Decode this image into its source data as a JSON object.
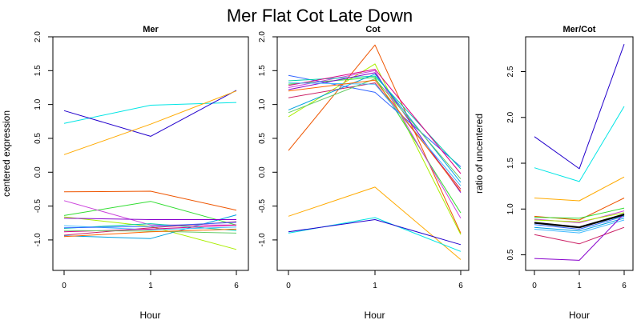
{
  "title": "Mer Flat Cot Late Down",
  "chart_data": [
    {
      "type": "line",
      "title": "Mer",
      "xlabel": "Hour",
      "ylabel": "centered expression",
      "categories": [
        "0",
        "1",
        "6"
      ],
      "ylim": [
        -1.45,
        2.0
      ],
      "yticks": [
        "-1.0",
        "-0.5",
        "0.0",
        "0.5",
        "1.0",
        "1.5",
        "2.0"
      ],
      "series": [
        {
          "color": "#00e5e5",
          "values": [
            0.72,
            0.99,
            1.03
          ]
        },
        {
          "color": "#2200cc",
          "values": [
            0.91,
            0.53,
            1.21
          ]
        },
        {
          "color": "#ffaa00",
          "values": [
            0.26,
            0.71,
            1.2
          ]
        },
        {
          "color": "#ee5500",
          "values": [
            -0.29,
            -0.28,
            -0.56
          ]
        },
        {
          "color": "#33dd33",
          "values": [
            -0.64,
            -0.43,
            -0.78
          ]
        },
        {
          "color": "#cc44dd",
          "values": [
            -0.42,
            -0.78,
            -0.78
          ]
        },
        {
          "color": "#aaee00",
          "values": [
            -0.66,
            -0.8,
            -1.14
          ]
        },
        {
          "color": "#00a0e0",
          "values": [
            -0.94,
            -0.98,
            -0.63
          ]
        },
        {
          "color": "#8800cc",
          "values": [
            -0.68,
            -0.7,
            -0.7
          ]
        },
        {
          "color": "#00ccaa",
          "values": [
            -0.83,
            -0.76,
            -0.86
          ]
        },
        {
          "color": "#cc2266",
          "values": [
            -0.93,
            -0.82,
            -0.73
          ]
        },
        {
          "color": "#44bbff",
          "values": [
            -0.79,
            -0.85,
            -0.81
          ]
        },
        {
          "color": "#dd0088",
          "values": [
            -0.88,
            -0.84,
            -0.78
          ]
        },
        {
          "color": "#66cc66",
          "values": [
            -0.86,
            -0.87,
            -0.9
          ]
        },
        {
          "color": "#ff6600",
          "values": [
            -0.95,
            -0.88,
            -0.84
          ]
        },
        {
          "color": "#3366ff",
          "values": [
            -0.82,
            -0.8,
            -0.74
          ]
        }
      ]
    },
    {
      "type": "line",
      "title": "Cot",
      "xlabel": "Hour",
      "ylabel": "",
      "categories": [
        "0",
        "1",
        "6"
      ],
      "ylim": [
        -1.45,
        2.0
      ],
      "yticks": [
        "-1.0",
        "-0.5",
        "0.0",
        "0.5",
        "1.0",
        "1.5",
        "2.0"
      ],
      "series": [
        {
          "color": "#ee5500",
          "values": [
            0.32,
            1.88,
            -0.9
          ]
        },
        {
          "color": "#ffaa00",
          "values": [
            -0.65,
            -0.22,
            -1.29
          ]
        },
        {
          "color": "#00e5e5",
          "values": [
            -0.9,
            -0.67,
            -1.17
          ]
        },
        {
          "color": "#2200cc",
          "values": [
            -0.88,
            -0.7,
            -1.07
          ]
        },
        {
          "color": "#aaee00",
          "values": [
            0.82,
            1.6,
            -0.92
          ]
        },
        {
          "color": "#33dd33",
          "values": [
            1.3,
            1.4,
            -0.6
          ]
        },
        {
          "color": "#cc44dd",
          "values": [
            1.25,
            1.5,
            -0.68
          ]
        },
        {
          "color": "#3366ff",
          "values": [
            1.43,
            1.18,
            0.08
          ]
        },
        {
          "color": "#00ccaa",
          "values": [
            1.35,
            1.42,
            0.05
          ]
        },
        {
          "color": "#cc2266",
          "values": [
            1.1,
            1.32,
            -0.25
          ]
        },
        {
          "color": "#8800cc",
          "values": [
            1.22,
            1.47,
            -0.3
          ]
        },
        {
          "color": "#00a0e0",
          "values": [
            0.92,
            1.45,
            -0.15
          ]
        },
        {
          "color": "#dd0088",
          "values": [
            1.28,
            1.52,
            -0.02
          ]
        },
        {
          "color": "#66cc66",
          "values": [
            0.88,
            1.38,
            -0.1
          ]
        },
        {
          "color": "#44bbff",
          "values": [
            1.32,
            1.3,
            -0.2
          ]
        },
        {
          "color": "#ff6600",
          "values": [
            1.2,
            1.36,
            -0.28
          ]
        }
      ]
    },
    {
      "type": "line",
      "title": "Mer/Cot",
      "xlabel": "Hour",
      "ylabel": "ratio of uncentered",
      "categories": [
        "0",
        "1",
        "6"
      ],
      "ylim": [
        0.33,
        2.88
      ],
      "yticks": [
        "0.5",
        "1.0",
        "1.5",
        "2.0",
        "2.5"
      ],
      "series": [
        {
          "color": "#2200cc",
          "values": [
            1.79,
            1.44,
            2.8
          ]
        },
        {
          "color": "#00e5e5",
          "values": [
            1.45,
            1.3,
            2.12
          ]
        },
        {
          "color": "#ffaa00",
          "values": [
            1.12,
            1.09,
            1.35
          ]
        },
        {
          "color": "#ee5500",
          "values": [
            0.92,
            0.88,
            1.12
          ]
        },
        {
          "color": "#33dd33",
          "values": [
            0.91,
            0.9,
            1.01
          ]
        },
        {
          "color": "#cc44dd",
          "values": [
            0.89,
            0.85,
            0.98
          ]
        },
        {
          "color": "#aaee00",
          "values": [
            0.88,
            0.86,
            0.96
          ]
        },
        {
          "color": "#00ccaa",
          "values": [
            0.85,
            0.8,
            0.93
          ]
        },
        {
          "color": "#3366ff",
          "values": [
            0.83,
            0.78,
            0.92
          ]
        },
        {
          "color": "#00a0e0",
          "values": [
            0.8,
            0.76,
            0.9
          ]
        },
        {
          "color": "#44bbff",
          "values": [
            0.78,
            0.74,
            0.88
          ]
        },
        {
          "color": "#cc2266",
          "values": [
            0.72,
            0.62,
            0.8
          ]
        },
        {
          "color": "#8800cc",
          "values": [
            0.46,
            0.44,
            0.95
          ]
        },
        {
          "color": "#000000",
          "width": 2.2,
          "values": [
            0.85,
            0.8,
            0.94
          ]
        }
      ]
    }
  ]
}
